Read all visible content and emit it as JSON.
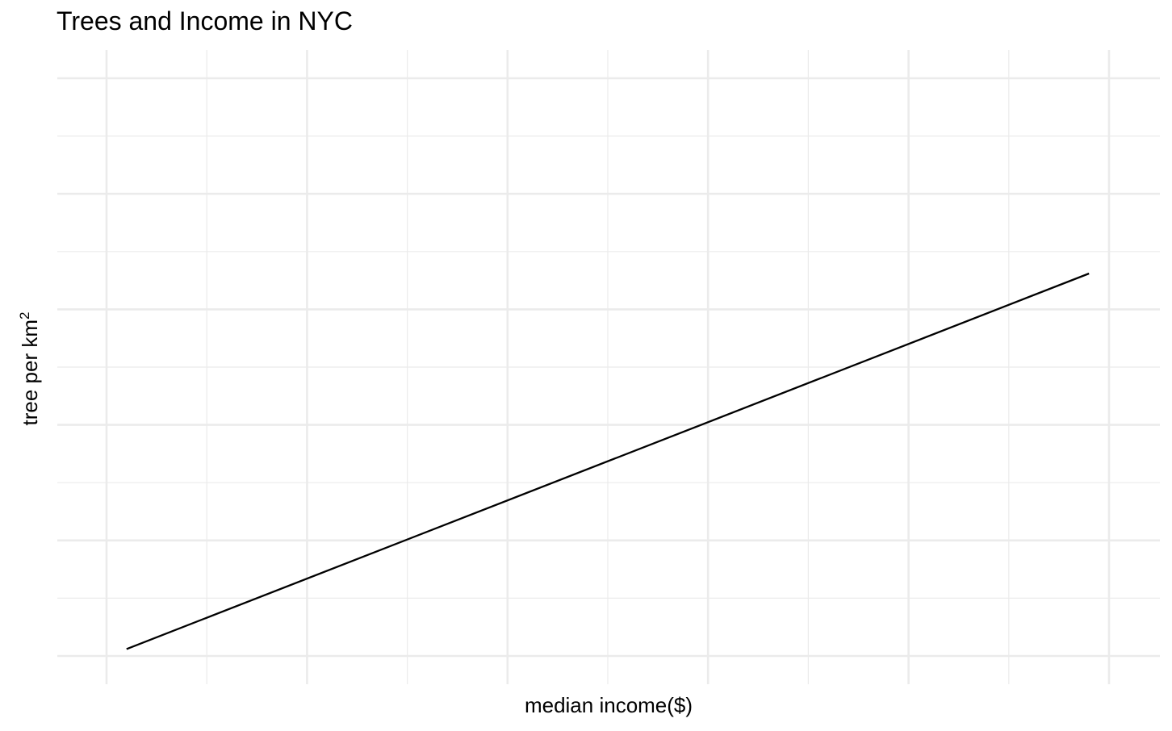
{
  "chart_data": {
    "type": "line",
    "title": "Trees and Income in NYC",
    "xlabel": "median income($)",
    "ylabel_main": "tree per km",
    "ylabel_superscript": "2",
    "tick_labels_visible": false,
    "grid": true,
    "legend": "none",
    "series": [
      {
        "values_x": [
          0.1,
          4.9
        ],
        "values_y": [
          0.06,
          3.31
        ]
      }
    ],
    "x_major_ticks": [
      0,
      1,
      2,
      3,
      4,
      5
    ],
    "y_major_ticks": [
      0,
      1,
      2,
      3,
      4,
      5
    ],
    "xlim": [
      -0.25,
      5.25
    ],
    "ylim": [
      -0.2,
      5.25
    ],
    "colors": {
      "line": "#000000",
      "grid_major": "#ebebeb",
      "grid_minor": "#ebebeb",
      "background": "#ffffff"
    }
  }
}
